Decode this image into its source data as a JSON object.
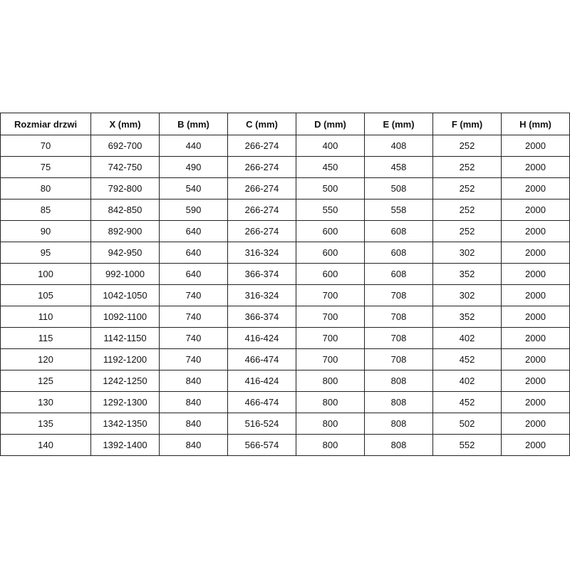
{
  "table": {
    "header": [
      "Rozmiar drzwi",
      "X (mm)",
      "B (mm)",
      "C (mm)",
      "D (mm)",
      "E (mm)",
      "F (mm)",
      "H (mm)"
    ],
    "rows": [
      [
        70,
        "692-700",
        440,
        "266-274",
        400,
        408,
        252,
        2000
      ],
      [
        75,
        "742-750",
        490,
        "266-274",
        450,
        458,
        252,
        2000
      ],
      [
        80,
        "792-800",
        540,
        "266-274",
        500,
        508,
        252,
        2000
      ],
      [
        85,
        "842-850",
        590,
        "266-274",
        550,
        558,
        252,
        2000
      ],
      [
        90,
        "892-900",
        640,
        "266-274",
        600,
        608,
        252,
        2000
      ],
      [
        95,
        "942-950",
        640,
        "316-324",
        600,
        608,
        302,
        2000
      ],
      [
        100,
        "992-1000",
        640,
        "366-374",
        600,
        608,
        352,
        2000
      ],
      [
        105,
        "1042-1050",
        740,
        "316-324",
        700,
        708,
        302,
        2000
      ],
      [
        110,
        "1092-1100",
        740,
        "366-374",
        700,
        708,
        352,
        2000
      ],
      [
        115,
        "1142-1150",
        740,
        "416-424",
        700,
        708,
        402,
        2000
      ],
      [
        120,
        "1192-1200",
        740,
        "466-474",
        700,
        708,
        452,
        2000
      ],
      [
        125,
        "1242-1250",
        840,
        "416-424",
        800,
        808,
        402,
        2000
      ],
      [
        130,
        "1292-1300",
        840,
        "466-474",
        800,
        808,
        452,
        2000
      ],
      [
        135,
        "1342-1350",
        840,
        "516-524",
        800,
        808,
        502,
        2000
      ],
      [
        140,
        "1392-1400",
        840,
        "566-574",
        800,
        808,
        552,
        2000
      ]
    ]
  }
}
